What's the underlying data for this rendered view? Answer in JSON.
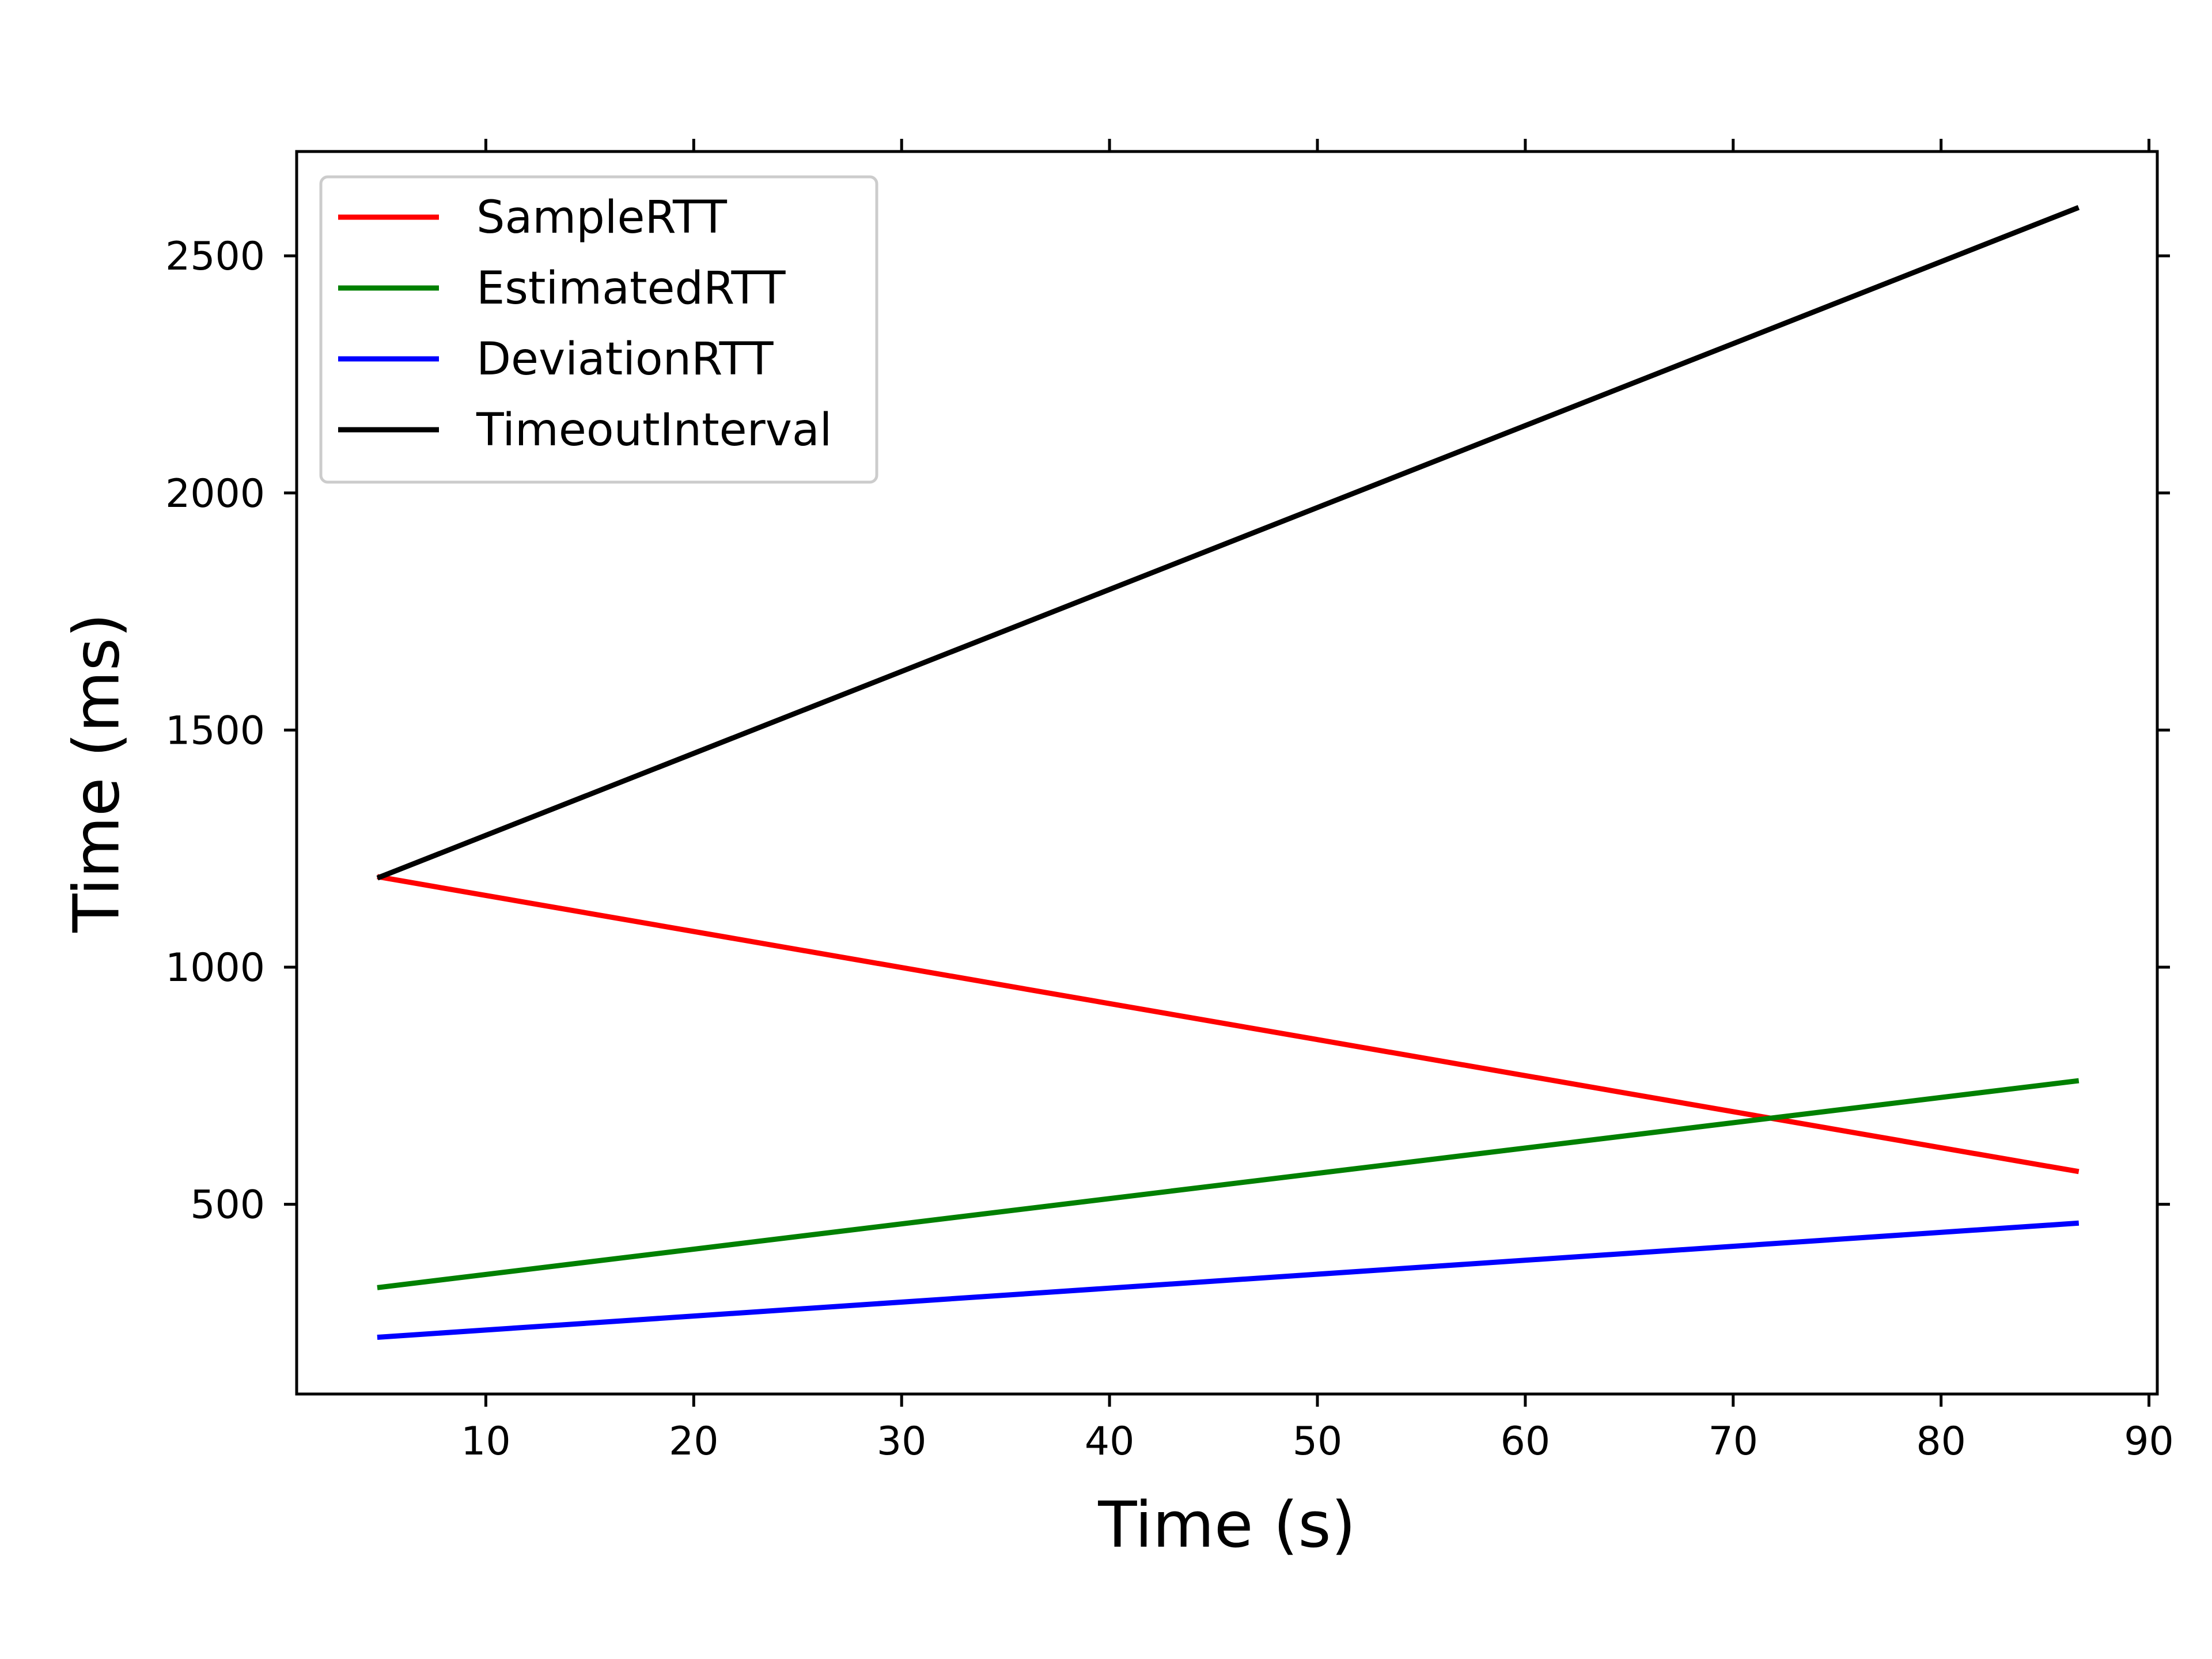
{
  "chart_data": {
    "type": "line",
    "title": "",
    "xlabel": "Time (s)",
    "ylabel": "Time (ms)",
    "xlim": [
      0.9,
      90.4
    ],
    "ylim": [
      100,
      2720
    ],
    "xticks": [
      10,
      20,
      30,
      40,
      50,
      60,
      70,
      80,
      90
    ],
    "yticks": [
      500,
      1000,
      1500,
      2000,
      2500
    ],
    "grid": false,
    "legend_position": "upper-left",
    "x": [
      4.9,
      86.5
    ],
    "series": [
      {
        "name": "SampleRTT",
        "color": "#ff0000",
        "values": [
          1190,
          570
        ]
      },
      {
        "name": "EstimatedRTT",
        "color": "#008000",
        "values": [
          325,
          760
        ]
      },
      {
        "name": "DeviationRTT",
        "color": "#0000ff",
        "values": [
          220,
          460
        ]
      },
      {
        "name": "TimeoutInterval",
        "color": "#000000",
        "values": [
          1190,
          2600
        ]
      }
    ]
  }
}
